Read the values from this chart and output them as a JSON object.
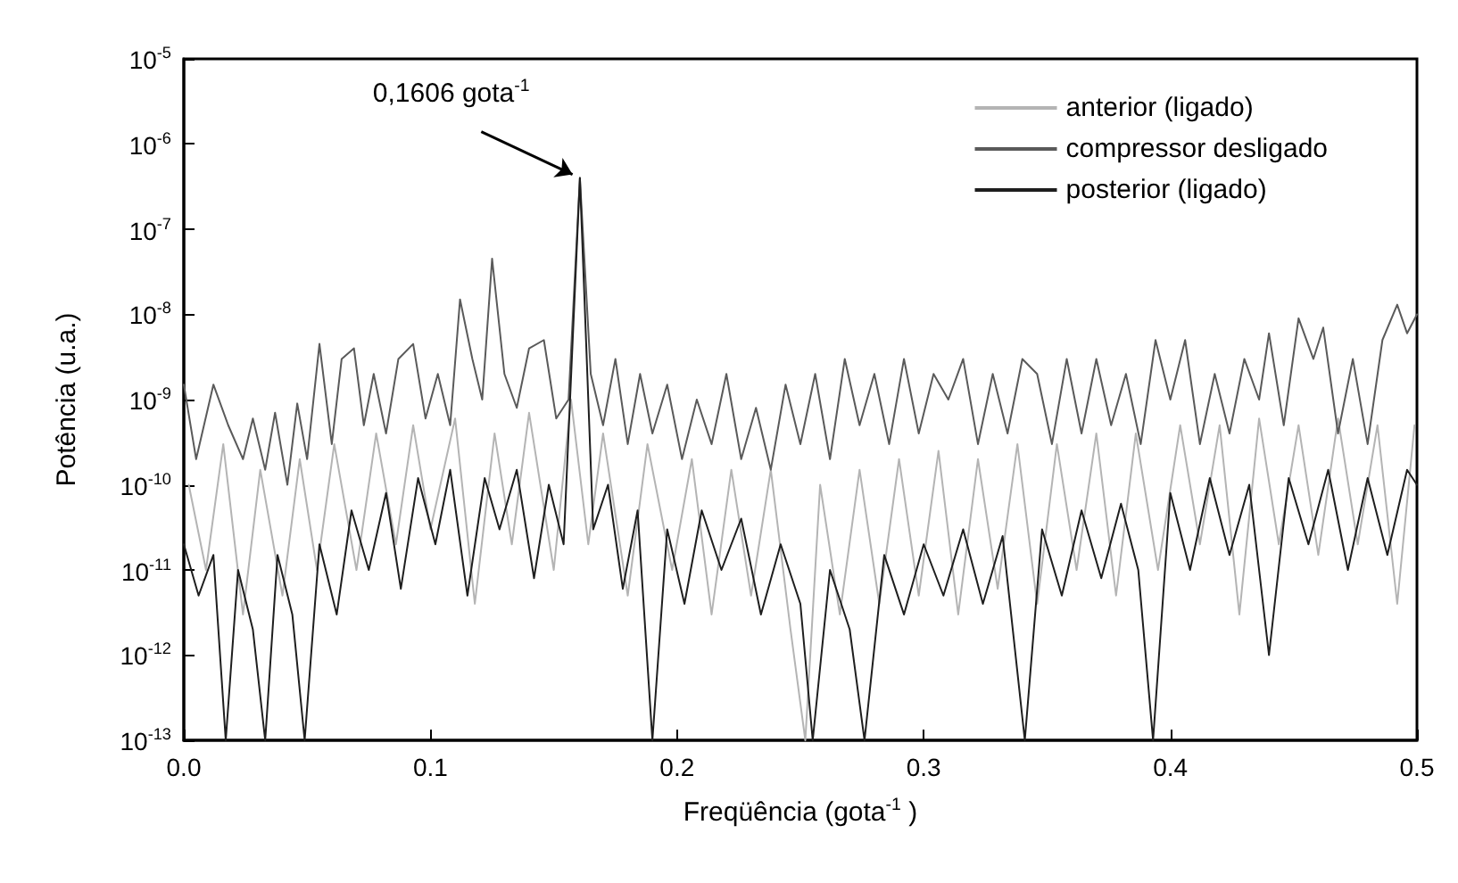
{
  "chart_data": {
    "type": "line",
    "xlabel": "Freqüência (gota$^{-1}$ )",
    "ylabel": "Potência (u.a.)",
    "log": "y",
    "grid": false,
    "legend": "top right",
    "marker": "none",
    "line_style": "solid",
    "xlim": [
      0,
      0.5
    ],
    "xticks": [
      {
        "value": 0,
        "label": "0.0"
      },
      {
        "value": 0.1,
        "label": "0.1"
      },
      {
        "value": 0.2,
        "label": "0.2"
      },
      {
        "value": 0.3,
        "label": "0.3"
      },
      {
        "value": 0.4,
        "label": "0.4"
      },
      {
        "value": 0.5,
        "label": "0.5"
      }
    ],
    "ylim": [
      1e-13,
      1e-05
    ],
    "yticks": [
      {
        "value": 1e-13,
        "label": "10$^{-13}$"
      },
      {
        "value": 1e-12,
        "label": "10$^{-12}$"
      },
      {
        "value": 1e-11,
        "label": "10$^{-11}$"
      },
      {
        "value": 1e-10,
        "label": "10$^{-10}$"
      },
      {
        "value": 1e-09,
        "label": "10$^{-9}$"
      },
      {
        "value": 1e-08,
        "label": "10$^{-8}$"
      },
      {
        "value": 1e-07,
        "label": "10$^{-7}$"
      },
      {
        "value": 1e-06,
        "label": "10$^{-6}$"
      },
      {
        "value": 1e-05,
        "label": "10$^{-5}$"
      }
    ],
    "annotations": [
      {
        "text": "0,1606 gota$^{-1}$",
        "x": 0.1606,
        "y": 4e-07
      }
    ],
    "series": [
      {
        "name": "anterior (ligado)",
        "color": "#b4b4b4",
        "x": [
          0.002,
          0.009,
          0.016,
          0.024,
          0.031,
          0.04,
          0.047,
          0.054,
          0.061,
          0.07,
          0.078,
          0.086,
          0.093,
          0.1,
          0.11,
          0.118,
          0.126,
          0.133,
          0.14,
          0.15,
          0.157,
          0.164,
          0.17,
          0.18,
          0.188,
          0.198,
          0.206,
          0.214,
          0.222,
          0.23,
          0.238,
          0.246,
          0.252,
          0.258,
          0.266,
          0.274,
          0.282,
          0.29,
          0.298,
          0.306,
          0.314,
          0.322,
          0.33,
          0.338,
          0.346,
          0.354,
          0.362,
          0.37,
          0.378,
          0.386,
          0.395,
          0.404,
          0.412,
          0.42,
          0.428,
          0.436,
          0.444,
          0.452,
          0.46,
          0.468,
          0.476,
          0.484,
          0.492,
          0.499
        ],
        "values": [
          1e-10,
          1e-11,
          3e-10,
          3e-12,
          1.5e-10,
          5e-12,
          2e-10,
          1e-11,
          3e-10,
          1e-11,
          4e-10,
          2e-11,
          5e-10,
          3e-11,
          6e-10,
          4e-12,
          4e-10,
          2e-11,
          7e-10,
          1e-11,
          1e-09,
          2e-11,
          4e-10,
          5e-12,
          3e-10,
          1e-11,
          2e-10,
          3e-12,
          1.5e-10,
          5e-12,
          1.5e-10,
          2e-12,
          1e-13,
          1e-10,
          3e-12,
          1.5e-10,
          4e-12,
          2e-10,
          5e-12,
          2.5e-10,
          3e-12,
          2e-10,
          6e-12,
          3e-10,
          4e-12,
          3e-10,
          1e-11,
          4e-10,
          5e-12,
          4e-10,
          1e-11,
          5e-10,
          2e-11,
          5e-10,
          3e-12,
          6e-10,
          2e-11,
          5e-10,
          1.5e-11,
          6e-10,
          2e-11,
          5e-10,
          4e-12,
          5e-10
        ]
      },
      {
        "name": "compressor desligado",
        "color": "#5a5a5a",
        "x": [
          0,
          0.005,
          0.012,
          0.018,
          0.024,
          0.028,
          0.033,
          0.037,
          0.042,
          0.046,
          0.05,
          0.055,
          0.06,
          0.064,
          0.069,
          0.073,
          0.077,
          0.082,
          0.087,
          0.093,
          0.098,
          0.103,
          0.108,
          0.112,
          0.117,
          0.121,
          0.125,
          0.13,
          0.135,
          0.14,
          0.146,
          0.151,
          0.156,
          0.1606,
          0.165,
          0.17,
          0.175,
          0.18,
          0.185,
          0.19,
          0.196,
          0.202,
          0.208,
          0.214,
          0.22,
          0.226,
          0.232,
          0.238,
          0.244,
          0.25,
          0.256,
          0.262,
          0.268,
          0.274,
          0.28,
          0.286,
          0.292,
          0.298,
          0.304,
          0.31,
          0.316,
          0.322,
          0.328,
          0.334,
          0.34,
          0.346,
          0.352,
          0.358,
          0.364,
          0.37,
          0.376,
          0.382,
          0.388,
          0.394,
          0.4,
          0.406,
          0.412,
          0.418,
          0.424,
          0.43,
          0.436,
          0.44,
          0.446,
          0.452,
          0.458,
          0.462,
          0.468,
          0.474,
          0.48,
          0.486,
          0.492,
          0.496,
          0.5
        ],
        "values": [
          1.5e-09,
          2e-10,
          1.5e-09,
          5e-10,
          2e-10,
          6e-10,
          1.5e-10,
          7e-10,
          1e-10,
          9e-10,
          2e-10,
          4.5e-09,
          3e-10,
          3e-09,
          4e-09,
          5e-10,
          2e-09,
          4e-10,
          3e-09,
          4.5e-09,
          6e-10,
          2e-09,
          5e-10,
          1.5e-08,
          3e-09,
          1e-09,
          4.5e-08,
          2e-09,
          8e-10,
          4e-09,
          5e-09,
          6e-10,
          1e-09,
          4e-07,
          2e-09,
          5e-10,
          3e-09,
          3e-10,
          2e-09,
          4e-10,
          1.5e-09,
          2e-10,
          1e-09,
          3e-10,
          2e-09,
          2e-10,
          8e-10,
          1.5e-10,
          1.5e-09,
          3e-10,
          2e-09,
          2e-10,
          3e-09,
          5e-10,
          2e-09,
          3e-10,
          3e-09,
          4e-10,
          2e-09,
          1e-09,
          3e-09,
          3e-10,
          2e-09,
          4e-10,
          3e-09,
          2e-09,
          3e-10,
          3e-09,
          4e-10,
          3e-09,
          5e-10,
          2e-09,
          3e-10,
          5e-09,
          1e-09,
          5e-09,
          3e-10,
          2e-09,
          4e-10,
          3e-09,
          1e-09,
          6e-09,
          5e-10,
          9e-09,
          3e-09,
          7e-09,
          4e-10,
          3e-09,
          3e-10,
          5e-09,
          1.3e-08,
          6e-09,
          1e-08
        ]
      },
      {
        "name": "posterior (ligado)",
        "color": "#1e1e1e",
        "x": [
          0,
          0.006,
          0.012,
          0.017,
          0.022,
          0.028,
          0.033,
          0.038,
          0.044,
          0.049,
          0.055,
          0.062,
          0.068,
          0.075,
          0.082,
          0.088,
          0.095,
          0.102,
          0.108,
          0.115,
          0.122,
          0.128,
          0.135,
          0.142,
          0.148,
          0.154,
          0.1606,
          0.166,
          0.172,
          0.178,
          0.184,
          0.19,
          0.196,
          0.203,
          0.21,
          0.218,
          0.226,
          0.234,
          0.242,
          0.25,
          0.255,
          0.262,
          0.27,
          0.276,
          0.284,
          0.292,
          0.3,
          0.308,
          0.316,
          0.324,
          0.332,
          0.341,
          0.348,
          0.356,
          0.364,
          0.372,
          0.38,
          0.387,
          0.393,
          0.4,
          0.408,
          0.416,
          0.424,
          0.432,
          0.44,
          0.448,
          0.456,
          0.464,
          0.472,
          0.48,
          0.488,
          0.496,
          0.5
        ],
        "values": [
          2e-11,
          5e-12,
          1.5e-11,
          1e-13,
          1e-11,
          2e-12,
          1e-13,
          1.5e-11,
          3e-12,
          1e-13,
          2e-11,
          3e-12,
          5e-11,
          1e-11,
          8e-11,
          6e-12,
          1.2e-10,
          2e-11,
          1.5e-10,
          5e-12,
          1.2e-10,
          3e-11,
          1.5e-10,
          8e-12,
          1e-10,
          2e-11,
          4e-07,
          3e-11,
          1e-10,
          6e-12,
          5e-11,
          1e-13,
          3e-11,
          4e-12,
          5e-11,
          1e-11,
          4e-11,
          3e-12,
          2e-11,
          4e-12,
          1e-13,
          1e-11,
          2e-12,
          1e-13,
          1.5e-11,
          3e-12,
          2e-11,
          5e-12,
          3e-11,
          4e-12,
          2.5e-11,
          1e-13,
          3e-11,
          5e-12,
          5e-11,
          8e-12,
          6e-11,
          1e-11,
          1e-13,
          8e-11,
          1e-11,
          1.2e-10,
          1.5e-11,
          1e-10,
          1e-12,
          1.2e-10,
          2e-11,
          1.5e-10,
          1e-11,
          1.2e-10,
          1.5e-11,
          1.5e-10,
          1e-10
        ]
      }
    ]
  }
}
